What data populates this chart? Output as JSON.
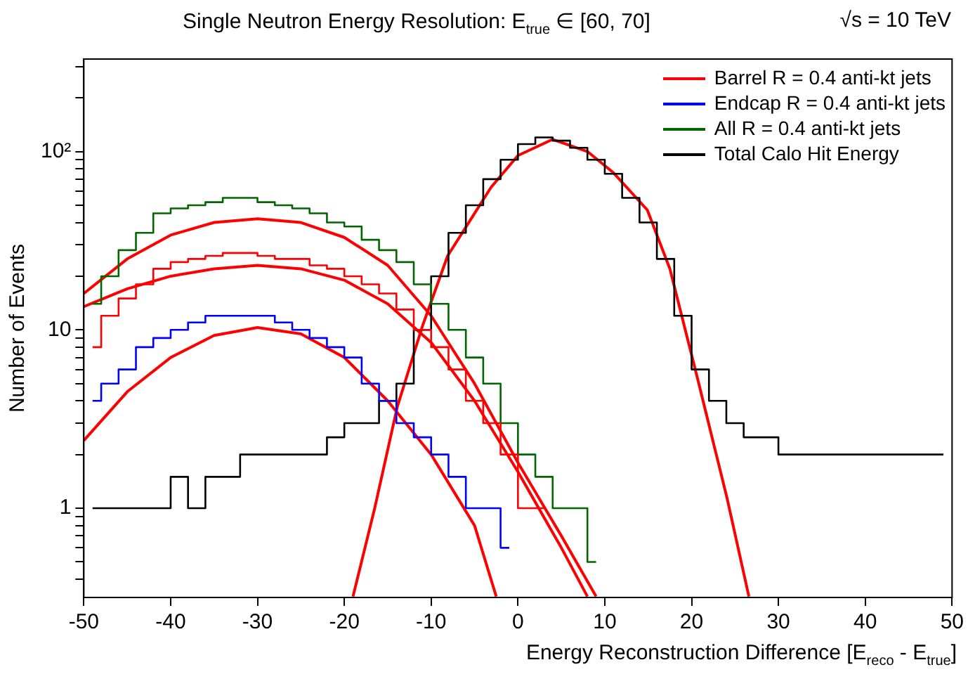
{
  "chart_data": {
    "type": "step",
    "title": "Single Neutron Energy Resolution: E$_{true}$ ∈ [60, 70]",
    "annotations": [
      "√s = 10 TeV"
    ],
    "xlabel": "Energy Reconstruction Difference  [E$_{reco}$ - E$_{true}$]",
    "ylabel": "Number of Events",
    "x": [
      -49,
      -47,
      -45,
      -43,
      -41,
      -39,
      -37,
      -35,
      -33,
      -31,
      -29,
      -27,
      -25,
      -23,
      -21,
      -19,
      -17,
      -15,
      -13,
      -11,
      -9,
      -7,
      -5,
      -3,
      -1,
      1,
      3,
      5,
      7,
      9,
      11,
      13,
      15,
      17,
      19,
      21,
      23,
      25,
      27,
      29,
      31,
      33,
      35,
      37,
      39,
      41,
      43,
      45,
      47,
      49
    ],
    "series": [
      {
        "name": "Barrel R = 0.4 anti-kt jets",
        "color": "#ff0000",
        "values": [
          8,
          12,
          15,
          18,
          22,
          24,
          25,
          26,
          27,
          27,
          26,
          25,
          25,
          23,
          22,
          20,
          18,
          16,
          13,
          10,
          8,
          6,
          4,
          3,
          2,
          1,
          1,
          null,
          null,
          null,
          null,
          null,
          null,
          null,
          null,
          null,
          null,
          null,
          null,
          null,
          null,
          null,
          null,
          null,
          null,
          null,
          null,
          null,
          null,
          null
        ]
      },
      {
        "name": "Endcap R = 0.4 anti-kt jets",
        "color": "#0000ff",
        "values": [
          4,
          5,
          6,
          8,
          9,
          10,
          11,
          12,
          12,
          12,
          12,
          11,
          10,
          9,
          8,
          7,
          5,
          4,
          3,
          2.5,
          2,
          1.5,
          1,
          1,
          0.6,
          null,
          null,
          null,
          null,
          null,
          null,
          null,
          null,
          null,
          null,
          null,
          null,
          null,
          null,
          null,
          null,
          null,
          null,
          null,
          null,
          null,
          null,
          null,
          null,
          null
        ]
      },
      {
        "name": "All R = 0.4 anti-kt jets",
        "color": "#006600",
        "values": [
          14,
          20,
          28,
          35,
          45,
          48,
          50,
          52,
          55,
          55,
          52,
          50,
          48,
          45,
          40,
          38,
          32,
          28,
          24,
          18,
          14,
          10,
          7,
          5,
          3,
          2,
          1.5,
          1,
          1,
          0.5,
          null,
          null,
          null,
          null,
          null,
          null,
          null,
          null,
          null,
          null,
          null,
          null,
          null,
          null,
          null,
          null,
          null,
          null,
          null,
          null
        ]
      },
      {
        "name": "Total Calo Hit Energy",
        "color": "#000000",
        "values": [
          1,
          1,
          1,
          1,
          1,
          1.5,
          1,
          1.5,
          1.5,
          2,
          2,
          2,
          2,
          2,
          2.5,
          3,
          3,
          4,
          5,
          10,
          20,
          35,
          50,
          70,
          90,
          110,
          120,
          115,
          105,
          90,
          75,
          55,
          40,
          25,
          12,
          6,
          4,
          3,
          2.5,
          2.5,
          2,
          2,
          2,
          2,
          2,
          2,
          2,
          2,
          2,
          2
        ]
      },
      {
        "type": "line",
        "color": "#ff0000",
        "x": [
          -50,
          -45,
          -40,
          -35,
          -30,
          -25,
          -20,
          -15,
          -10,
          -5,
          0,
          5,
          9
        ],
        "values": [
          16,
          25,
          34,
          40,
          42,
          40,
          33,
          23,
          12,
          5,
          1.8,
          0.7,
          0.32
        ]
      },
      {
        "type": "line",
        "color": "#ff0000",
        "x": [
          -50,
          -45,
          -40,
          -35,
          -30,
          -25,
          -20,
          -15,
          -10,
          -5,
          0,
          5,
          8
        ],
        "values": [
          13.5,
          17,
          20,
          22,
          23,
          22,
          19,
          14,
          8.5,
          4,
          1.6,
          0.6,
          0.32
        ]
      },
      {
        "type": "line",
        "color": "#ff0000",
        "x": [
          -50,
          -45,
          -40,
          -35,
          -30,
          -25,
          -20,
          -15,
          -10,
          -5,
          -2.5
        ],
        "values": [
          2.4,
          4.5,
          7,
          9.3,
          10.3,
          9.5,
          7,
          4,
          2,
          0.8,
          0.32
        ]
      },
      {
        "type": "line",
        "color": "#ff0000",
        "x": [
          -19,
          -16.5,
          -13.9,
          -11,
          -8.1,
          -5,
          -3.1,
          0,
          4,
          8,
          11,
          14.9,
          17.5,
          20.7,
          24.1,
          26.6
        ],
        "values": [
          0.32,
          1,
          3.7,
          10.5,
          26,
          45,
          63,
          95,
          117,
          100,
          76,
          47,
          22,
          5.3,
          1.13,
          0.32
        ]
      }
    ],
    "xlim": [
      -50,
      50
    ],
    "xticks": [
      -50,
      -40,
      -30,
      -20,
      -10,
      0,
      10,
      20,
      30,
      40,
      50
    ],
    "log": true,
    "ylim": [
      0.316,
      330
    ],
    "yticks": [
      {
        "value": 0.4,
        "label": null
      },
      {
        "value": 0.5,
        "label": null
      },
      {
        "value": 0.6,
        "label": null
      },
      {
        "value": 0.7,
        "label": null
      },
      {
        "value": 0.8,
        "label": null
      },
      {
        "value": 0.9,
        "label": null
      },
      1,
      {
        "value": 2,
        "label": null
      },
      {
        "value": 3,
        "label": null
      },
      {
        "value": 4,
        "label": null
      },
      {
        "value": 5,
        "label": null
      },
      {
        "value": 6,
        "label": null
      },
      {
        "value": 7,
        "label": null
      },
      {
        "value": 8,
        "label": null
      },
      {
        "value": 9,
        "label": null
      },
      10,
      {
        "value": 20,
        "label": null
      },
      {
        "value": 30,
        "label": null
      },
      {
        "value": 40,
        "label": null
      },
      {
        "value": 50,
        "label": null
      },
      {
        "value": 60,
        "label": null
      },
      {
        "value": 70,
        "label": null
      },
      {
        "value": 80,
        "label": null
      },
      {
        "value": 90,
        "label": null
      },
      {
        "value": 100,
        "label": "10²"
      },
      {
        "value": 200,
        "label": null
      },
      {
        "value": 300,
        "label": null
      }
    ],
    "grid": false,
    "legend": "top right",
    "marker": "none",
    "line_style": "solid"
  }
}
